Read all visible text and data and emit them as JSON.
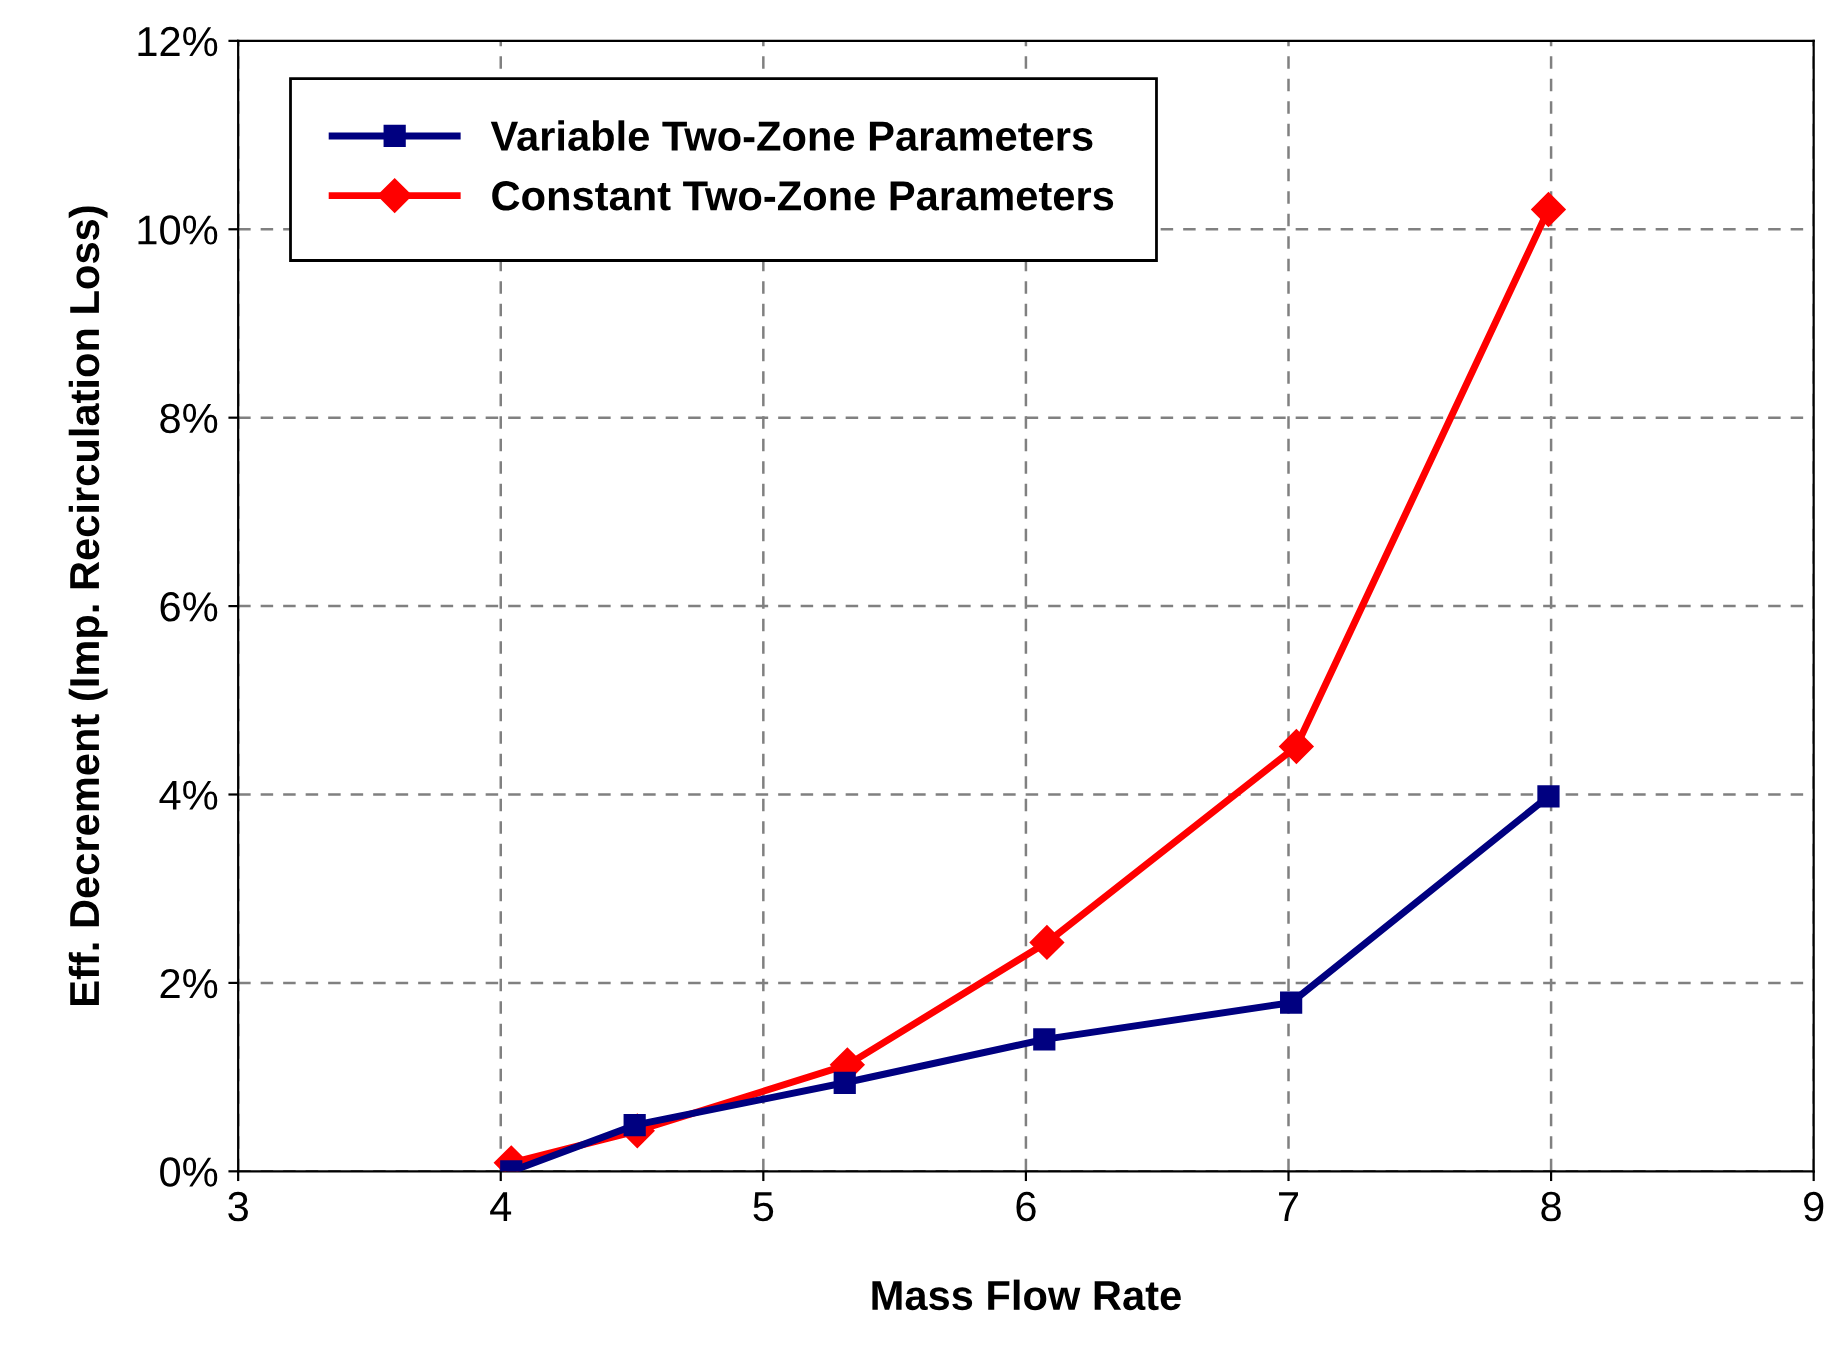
{
  "chart_data": {
    "type": "line",
    "xlabel": "Mass Flow Rate",
    "ylabel": "Eff. Decrement (Imp. Recirculation Loss)",
    "xlim": [
      3,
      9
    ],
    "xticks": [
      3,
      4,
      5,
      6,
      7,
      8,
      9
    ],
    "ylim": [
      0,
      12
    ],
    "yticks": [
      {
        "value": 0,
        "label": "0%"
      },
      {
        "value": 2,
        "label": "2%"
      },
      {
        "value": 4,
        "label": "4%"
      },
      {
        "value": 6,
        "label": "6%"
      },
      {
        "value": 8,
        "label": "8%"
      },
      {
        "value": 10,
        "label": "10%"
      },
      {
        "value": 12,
        "label": "12%"
      }
    ],
    "grid": true,
    "legend": "top left",
    "line_style": "solid",
    "series": [
      {
        "name": "Variable Two-Zone Parameters",
        "color": "#000080",
        "marker": "square",
        "x": [
          4.04,
          4.51,
          5.31,
          6.07,
          7.01,
          7.99
        ],
        "values": [
          0.0,
          0.49,
          0.94,
          1.4,
          1.79,
          3.98
        ]
      },
      {
        "name": "Constant Two-Zone Parameters",
        "color": "#ff0000",
        "marker": "diamond",
        "x": [
          4.04,
          4.52,
          5.32,
          6.08,
          7.03,
          7.99
        ],
        "values": [
          0.09,
          0.43,
          1.13,
          2.43,
          4.51,
          10.21
        ]
      }
    ]
  }
}
